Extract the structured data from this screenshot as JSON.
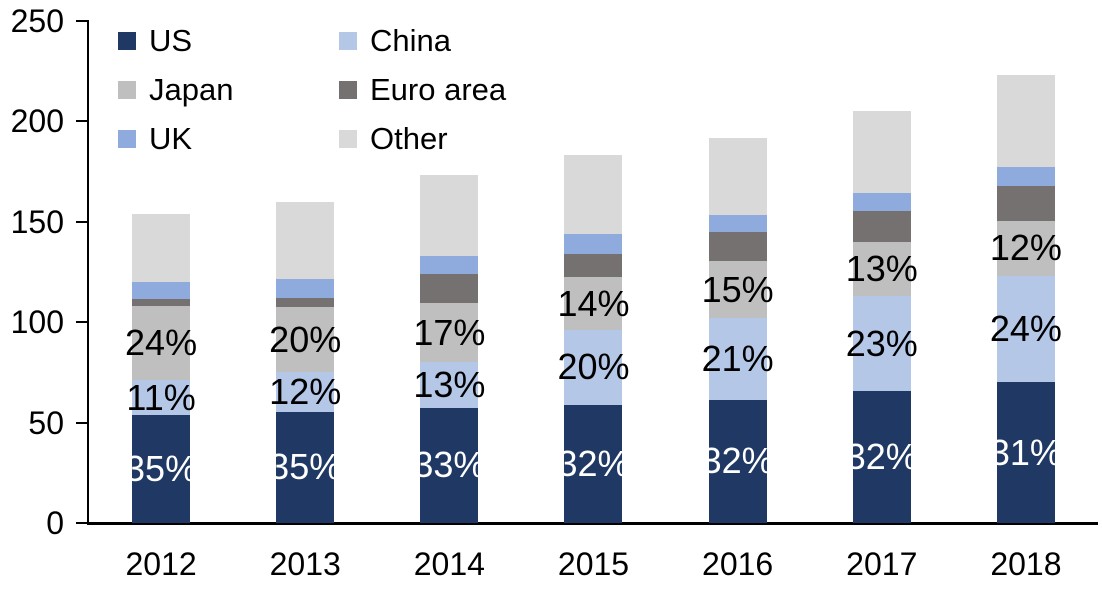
{
  "chart_data": {
    "type": "bar",
    "stacked": true,
    "title": "",
    "xlabel": "",
    "ylabel": "",
    "categories": [
      "2012",
      "2013",
      "2014",
      "2015",
      "2016",
      "2017",
      "2018"
    ],
    "series": [
      {
        "name": "US",
        "color": "#1F3864",
        "values": [
          54,
          55.5,
          57.5,
          59,
          61.5,
          65.5,
          70
        ],
        "segment_labels": [
          "35%",
          "35%",
          "33%",
          "32%",
          "32%",
          "32%",
          "31%"
        ],
        "label_color": "#FFFFFF"
      },
      {
        "name": "China",
        "color": "#B4C7E7",
        "values": [
          17,
          19.5,
          22.5,
          37,
          40.5,
          47.5,
          53
        ],
        "segment_labels": [
          "11%",
          "12%",
          "13%",
          "20%",
          "21%",
          "23%",
          "24%"
        ],
        "label_color": "#000000"
      },
      {
        "name": "Japan",
        "color": "#BFBFBF",
        "values": [
          37,
          32.5,
          29.5,
          26.5,
          28.5,
          27,
          27.5
        ],
        "segment_labels": [
          "24%",
          "20%",
          "17%",
          "14%",
          "15%",
          "13%",
          "12%"
        ],
        "label_color": "#000000"
      },
      {
        "name": "Euro area",
        "color": "#767171",
        "values": [
          3.5,
          4.5,
          14.5,
          11.5,
          14.5,
          15.5,
          17.5
        ],
        "segment_labels": [
          "",
          "",
          "",
          "",
          "",
          "",
          ""
        ],
        "label_color": "#000000"
      },
      {
        "name": "UK",
        "color": "#8FAADC",
        "values": [
          8.5,
          9.5,
          9,
          10,
          8.5,
          9,
          9.5
        ],
        "segment_labels": [
          "",
          "",
          "",
          "",
          "",
          "",
          ""
        ],
        "label_color": "#000000"
      },
      {
        "name": "Other",
        "color": "#D9D9D9",
        "values": [
          34,
          38.5,
          40.5,
          39.5,
          38.5,
          40.5,
          45.5
        ],
        "segment_labels": [
          "",
          "",
          "",
          "",
          "",
          "",
          ""
        ],
        "label_color": "#000000"
      }
    ],
    "totals": [
      154,
      160,
      173.5,
      183.5,
      192,
      205,
      223
    ],
    "ylim": [
      0,
      250
    ],
    "yticks": [
      0,
      50,
      100,
      150,
      200,
      250
    ],
    "y_tick_labels": [
      "0",
      "50",
      "100",
      "150",
      "200",
      "250"
    ],
    "grid": false,
    "legend": {
      "position": "top-left",
      "columns": 2,
      "row_major_order": [
        "US",
        "China",
        "Japan",
        "Euro area",
        "UK",
        "Other"
      ]
    }
  }
}
